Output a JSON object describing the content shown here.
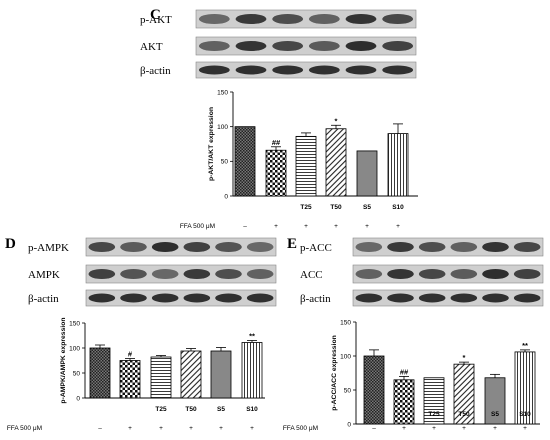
{
  "chart_data": [
    {
      "panel": "C",
      "type": "bar",
      "ylabel": "p-AKT/AKT expression",
      "ylim": [
        0,
        150
      ],
      "yticks": [
        0,
        50,
        100,
        150
      ],
      "categories": [
        "",
        "",
        "T25",
        "T50",
        "S5",
        "S10"
      ],
      "values": [
        100,
        66,
        86,
        97,
        65,
        90
      ],
      "errors": [
        0,
        5,
        5,
        5,
        0,
        14
      ],
      "significance": [
        "",
        "##",
        "",
        "*",
        "",
        ""
      ],
      "treatment_label": "FFA 500 μM",
      "treatment_marks": [
        "–",
        "+",
        "+",
        "+",
        "+",
        "+"
      ],
      "blots": [
        "p-AKT",
        "AKT",
        "β-actin"
      ]
    },
    {
      "panel": "D",
      "type": "bar",
      "ylabel": "p-AMPK/AMPK expression",
      "ylim": [
        0,
        150
      ],
      "yticks": [
        0,
        50,
        100,
        150
      ],
      "categories": [
        "",
        "",
        "T25",
        "T50",
        "S5",
        "S10"
      ],
      "values": [
        100,
        75,
        82,
        94,
        94,
        111
      ],
      "errors": [
        6,
        4,
        3,
        5,
        7,
        4
      ],
      "significance": [
        "",
        "#",
        "",
        "",
        "",
        "**"
      ],
      "treatment_label": "FFA 500 μM",
      "treatment_marks": [
        "–",
        "+",
        "+",
        "+",
        "+",
        "+"
      ],
      "blots": [
        "p-AMPK",
        "AMPK",
        "β-actin"
      ]
    },
    {
      "panel": "E",
      "type": "bar",
      "ylabel": "p-ACC/ACC expression",
      "ylim": [
        0,
        150
      ],
      "yticks": [
        0,
        50,
        100,
        150
      ],
      "categories": [
        "",
        "",
        "T25",
        "T50",
        "S5",
        "S10"
      ],
      "values": [
        100,
        65,
        68,
        88,
        68,
        106
      ],
      "errors": [
        9,
        5,
        0,
        3,
        5,
        3
      ],
      "significance": [
        "",
        "##",
        "",
        "*",
        "",
        "**"
      ],
      "treatment_label": "FFA 500 μM",
      "treatment_marks": [
        "–",
        "+",
        "+",
        "+",
        "+",
        "+"
      ],
      "blots": [
        "p-ACC",
        "ACC",
        "β-actin"
      ]
    }
  ]
}
